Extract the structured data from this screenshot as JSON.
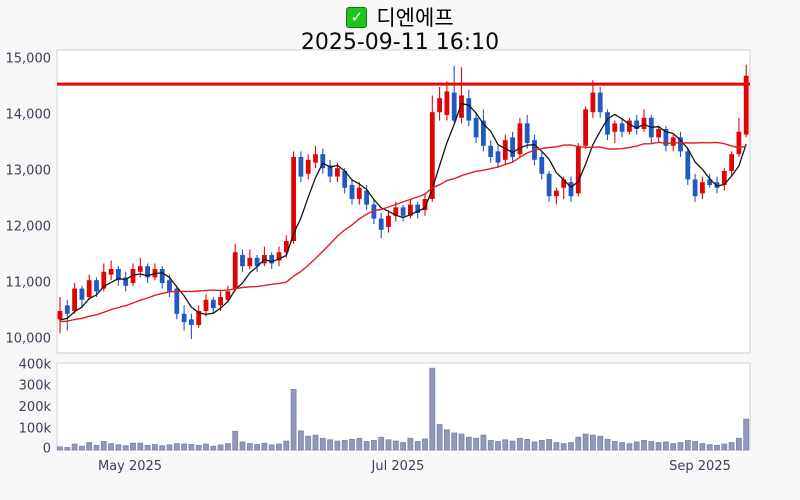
{
  "header": {
    "symbol_name": "디엔에프",
    "timestamp": "2025-09-11 16:10",
    "checkbox_checked": true,
    "check_icon": "✓"
  },
  "colors": {
    "background": "#f8f8f8",
    "plot_background": "#ffffff",
    "plot_border": "#cfcfd8",
    "up_candle": "#e00505",
    "down_candle": "#2159c0",
    "ma_short": "#151515",
    "ma_long": "#e02020",
    "level_line": "#ea0404",
    "volume_bar_fill": "#9099ba",
    "volume_bar_border": "#7b84a8",
    "axis_text": "#3c3f58",
    "checkbox_green": "#1dc51d"
  },
  "chart_data": {
    "type": "candlestick+volume",
    "title": "디엔에프",
    "subtitle": "2025-09-11 16:10",
    "legend_position": "none",
    "grid": false,
    "price_axis": {
      "ticks": [
        "15,000",
        "14,000",
        "13,000",
        "12,000",
        "11,000",
        "10,000"
      ],
      "tick_values": [
        15000,
        14000,
        13000,
        12000,
        11000,
        10000
      ],
      "view_min": 9750,
      "view_max": 15160
    },
    "volume_axis": {
      "ticks": [
        "400k",
        "300k",
        "200k",
        "100k",
        "0"
      ],
      "tick_values": [
        400000,
        300000,
        200000,
        100000,
        0
      ]
    },
    "x_axis": {
      "ticks": [
        {
          "label": "May 2025",
          "index": 9.5
        },
        {
          "label": "Jul 2025",
          "index": 46
        },
        {
          "label": "Sep 2025",
          "index": 87
        }
      ]
    },
    "level_line": {
      "price": 14550
    },
    "ma_periods": {
      "short": 5,
      "long": 20
    },
    "prehistory_close": 10300,
    "ohlc": [
      [
        10350,
        10750,
        10100,
        10500
      ],
      [
        10600,
        10700,
        10150,
        10450
      ],
      [
        10500,
        11000,
        10450,
        10900
      ],
      [
        10900,
        10950,
        10550,
        10700
      ],
      [
        10750,
        11150,
        10700,
        11050
      ],
      [
        11050,
        11100,
        10750,
        10850
      ],
      [
        10900,
        11350,
        10850,
        11200
      ],
      [
        11150,
        11400,
        11050,
        11250
      ],
      [
        11250,
        11300,
        10950,
        11050
      ],
      [
        11100,
        11200,
        10850,
        10950
      ],
      [
        11000,
        11350,
        10950,
        11250
      ],
      [
        11200,
        11450,
        11100,
        11300
      ],
      [
        11300,
        11350,
        11000,
        11100
      ],
      [
        11100,
        11350,
        11050,
        11250
      ],
      [
        11250,
        11300,
        10900,
        11000
      ],
      [
        11050,
        11150,
        10750,
        10850
      ],
      [
        10900,
        10950,
        10350,
        10450
      ],
      [
        10450,
        10600,
        10150,
        10300
      ],
      [
        10350,
        10450,
        10000,
        10250
      ],
      [
        10250,
        10600,
        10200,
        10500
      ],
      [
        10500,
        10800,
        10400,
        10700
      ],
      [
        10700,
        10750,
        10450,
        10550
      ],
      [
        10600,
        10850,
        10500,
        10750
      ],
      [
        10700,
        10950,
        10650,
        10850
      ],
      [
        10900,
        11700,
        10850,
        11550
      ],
      [
        11500,
        11600,
        11200,
        11300
      ],
      [
        11300,
        11600,
        11250,
        11450
      ],
      [
        11450,
        11500,
        11200,
        11300
      ],
      [
        11350,
        11650,
        11300,
        11500
      ],
      [
        11500,
        11550,
        11250,
        11350
      ],
      [
        11400,
        11650,
        11300,
        11550
      ],
      [
        11550,
        11850,
        11450,
        11750
      ],
      [
        11750,
        13350,
        11700,
        13250
      ],
      [
        13250,
        13350,
        12800,
        12900
      ],
      [
        12950,
        13300,
        12850,
        13200
      ],
      [
        13150,
        13450,
        13050,
        13300
      ],
      [
        13300,
        13400,
        12950,
        13050
      ],
      [
        13100,
        13200,
        12800,
        12900
      ],
      [
        12900,
        13150,
        12800,
        13050
      ],
      [
        13000,
        13050,
        12600,
        12700
      ],
      [
        12750,
        12850,
        12400,
        12500
      ],
      [
        12500,
        12800,
        12400,
        12700
      ],
      [
        12650,
        12750,
        12300,
        12400
      ],
      [
        12400,
        12500,
        12050,
        12150
      ],
      [
        12150,
        12250,
        11800,
        11950
      ],
      [
        12000,
        12300,
        11900,
        12200
      ],
      [
        12200,
        12450,
        12100,
        12350
      ],
      [
        12350,
        12400,
        12100,
        12200
      ],
      [
        12200,
        12500,
        12150,
        12400
      ],
      [
        12400,
        12450,
        12150,
        12250
      ],
      [
        12300,
        12600,
        12200,
        12500
      ],
      [
        12500,
        14350,
        12450,
        14050
      ],
      [
        14050,
        14500,
        13900,
        14300
      ],
      [
        14000,
        14600,
        13900,
        14420
      ],
      [
        14400,
        14880,
        13850,
        13900
      ],
      [
        13950,
        14850,
        13850,
        14350
      ],
      [
        14300,
        14450,
        13800,
        13900
      ],
      [
        13950,
        14050,
        13500,
        13600
      ],
      [
        13900,
        14100,
        13350,
        13450
      ],
      [
        13450,
        13550,
        13150,
        13250
      ],
      [
        13350,
        13450,
        13050,
        13150
      ],
      [
        13200,
        13650,
        13100,
        13550
      ],
      [
        13600,
        13700,
        13150,
        13250
      ],
      [
        13300,
        13950,
        13250,
        13850
      ],
      [
        13850,
        14000,
        13400,
        13500
      ],
      [
        13550,
        13650,
        13100,
        13200
      ],
      [
        13250,
        13350,
        12850,
        12950
      ],
      [
        12950,
        13000,
        12450,
        12550
      ],
      [
        12550,
        12700,
        12400,
        12650
      ],
      [
        12700,
        12900,
        12500,
        12850
      ],
      [
        12800,
        12900,
        12450,
        12550
      ],
      [
        12600,
        13500,
        12550,
        13450
      ],
      [
        13450,
        14150,
        13400,
        14100
      ],
      [
        14050,
        14620,
        13950,
        14400
      ],
      [
        14400,
        14500,
        13950,
        14050
      ],
      [
        14050,
        14100,
        13550,
        13650
      ],
      [
        13700,
        13900,
        13500,
        13850
      ],
      [
        13850,
        13950,
        13600,
        13700
      ],
      [
        13700,
        13950,
        13650,
        13900
      ],
      [
        13900,
        14000,
        13650,
        13750
      ],
      [
        13750,
        14100,
        13700,
        13950
      ],
      [
        13950,
        14000,
        13500,
        13600
      ],
      [
        13600,
        13800,
        13500,
        13750
      ],
      [
        13750,
        13800,
        13350,
        13450
      ],
      [
        13450,
        13650,
        13350,
        13600
      ],
      [
        13600,
        13700,
        13250,
        13350
      ],
      [
        13350,
        13400,
        12750,
        12850
      ],
      [
        12850,
        12950,
        12450,
        12550
      ],
      [
        12600,
        12900,
        12500,
        12800
      ],
      [
        12850,
        12950,
        12700,
        12750
      ],
      [
        12800,
        12900,
        12600,
        12700
      ],
      [
        12750,
        13050,
        12650,
        13000
      ],
      [
        13000,
        13350,
        12900,
        13300
      ],
      [
        13300,
        13950,
        13250,
        13700
      ],
      [
        13650,
        14900,
        13600,
        14700
      ]
    ],
    "volumes": [
      15000,
      12000,
      28000,
      18000,
      35000,
      22000,
      40000,
      30000,
      25000,
      20000,
      32000,
      32000,
      22000,
      26000,
      20000,
      24000,
      30000,
      28000,
      26000,
      22000,
      28000,
      18000,
      24000,
      30000,
      88000,
      38000,
      30000,
      26000,
      32000,
      24000,
      28000,
      42000,
      285000,
      90000,
      65000,
      70000,
      55000,
      48000,
      42000,
      45000,
      50000,
      55000,
      40000,
      45000,
      60000,
      48000,
      42000,
      35000,
      55000,
      40000,
      52000,
      385000,
      120000,
      95000,
      80000,
      75000,
      60000,
      55000,
      70000,
      45000,
      40000,
      48000,
      42000,
      55000,
      50000,
      38000,
      45000,
      50000,
      35000,
      30000,
      35000,
      60000,
      75000,
      70000,
      65000,
      50000,
      40000,
      35000,
      30000,
      38000,
      45000,
      40000,
      35000,
      38000,
      30000,
      35000,
      45000,
      40000,
      30000,
      25000,
      22000,
      28000,
      35000,
      55000,
      145000
    ]
  }
}
